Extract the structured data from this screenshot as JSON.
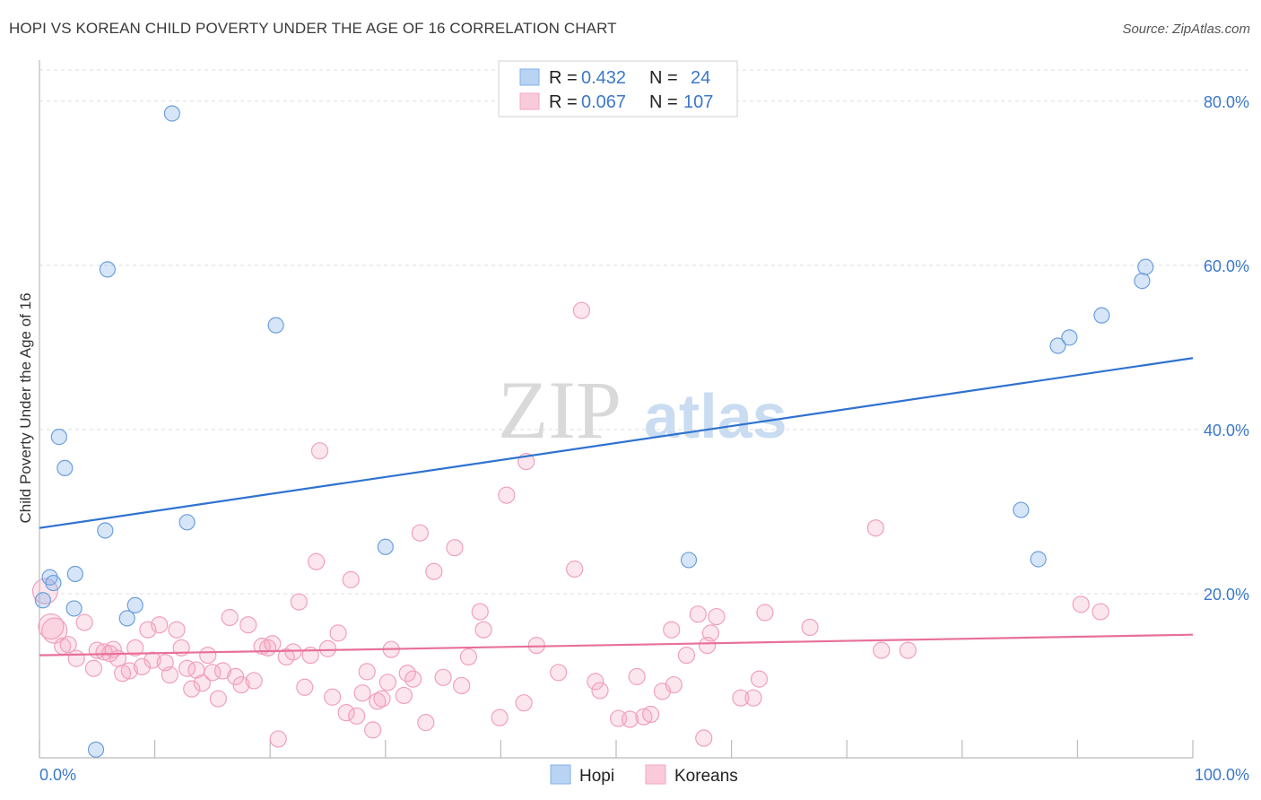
{
  "header": {
    "title": "HOPI VS KOREAN CHILD POVERTY UNDER THE AGE OF 16 CORRELATION CHART",
    "source": "Source: ZipAtlas.com"
  },
  "watermark": {
    "zip": "ZIP",
    "atlas": "atlas"
  },
  "legend": {
    "rows": [
      {
        "r_label": "R =",
        "r_value": "0.432",
        "n_label": "N =",
        "n_value": "24",
        "color": "#7fb0e8"
      },
      {
        "r_label": "R =",
        "r_value": "0.067",
        "n_label": "N =",
        "n_value": "107",
        "color": "#f4a6c0"
      }
    ]
  },
  "bottom_legend": [
    {
      "label": "Hopi",
      "color": "#7fb0e8"
    },
    {
      "label": "Koreans",
      "color": "#f4a6c0"
    }
  ],
  "chart_data": {
    "type": "scatter",
    "title": "HOPI VS KOREAN CHILD POVERTY UNDER THE AGE OF 16 CORRELATION CHART",
    "xlabel": "",
    "ylabel": "Child Poverty Under the Age of 16",
    "xlim": [
      0,
      100
    ],
    "ylim": [
      0,
      85
    ],
    "x_tick_labels": [
      "0.0%",
      "100.0%"
    ],
    "y_ticks": [
      20,
      40,
      60,
      80
    ],
    "y_tick_labels": [
      "20.0%",
      "40.0%",
      "60.0%",
      "80.0%"
    ],
    "grid": "horizontal dashed",
    "colors": {
      "hopi": "#7fb0e8",
      "hopi_line": "#2f72d0",
      "koreans": "#f4a6c0",
      "koreans_line": "#e8709a"
    },
    "series": [
      {
        "name": "Hopi",
        "trend": {
          "x": [
            0,
            100
          ],
          "y": [
            28.0,
            48.7
          ]
        },
        "points": [
          [
            11.5,
            78.5
          ],
          [
            5.9,
            59.5
          ],
          [
            20.5,
            52.7
          ],
          [
            1.7,
            39.1
          ],
          [
            2.2,
            35.3
          ],
          [
            12.8,
            28.7
          ],
          [
            5.7,
            27.7
          ],
          [
            30.0,
            25.7
          ],
          [
            56.3,
            24.1
          ],
          [
            3.1,
            22.4
          ],
          [
            0.9,
            22.0
          ],
          [
            1.2,
            21.3
          ],
          [
            8.3,
            18.6
          ],
          [
            3.0,
            18.2
          ],
          [
            7.6,
            17.0
          ],
          [
            0.3,
            19.2
          ],
          [
            4.9,
            1.0
          ],
          [
            85.1,
            30.2
          ],
          [
            86.6,
            24.2
          ],
          [
            88.3,
            50.2
          ],
          [
            89.3,
            51.2
          ],
          [
            92.1,
            53.9
          ],
          [
            95.6,
            58.1
          ],
          [
            95.9,
            59.8
          ]
        ]
      },
      {
        "name": "Koreans",
        "trend": {
          "x": [
            0,
            100
          ],
          "y": [
            12.5,
            15.0
          ]
        },
        "points": [
          [
            0.5,
            20.3
          ],
          [
            1.0,
            16.0
          ],
          [
            1.3,
            15.5
          ],
          [
            2.0,
            13.6
          ],
          [
            2.5,
            13.8
          ],
          [
            3.2,
            12.1
          ],
          [
            3.9,
            16.5
          ],
          [
            4.7,
            10.9
          ],
          [
            5.0,
            13.1
          ],
          [
            5.6,
            12.9
          ],
          [
            6.1,
            12.7
          ],
          [
            6.4,
            13.2
          ],
          [
            6.8,
            12.1
          ],
          [
            7.2,
            10.3
          ],
          [
            7.8,
            10.6
          ],
          [
            8.3,
            13.4
          ],
          [
            8.9,
            11.1
          ],
          [
            9.4,
            15.6
          ],
          [
            9.8,
            11.9
          ],
          [
            10.4,
            16.2
          ],
          [
            10.9,
            11.6
          ],
          [
            11.3,
            10.1
          ],
          [
            11.9,
            15.6
          ],
          [
            12.3,
            13.4
          ],
          [
            12.8,
            10.9
          ],
          [
            13.2,
            8.4
          ],
          [
            13.6,
            10.7
          ],
          [
            14.1,
            9.1
          ],
          [
            14.6,
            12.5
          ],
          [
            15.0,
            10.4
          ],
          [
            15.5,
            7.2
          ],
          [
            15.9,
            10.6
          ],
          [
            16.5,
            17.1
          ],
          [
            17.0,
            9.9
          ],
          [
            17.5,
            8.9
          ],
          [
            18.1,
            16.2
          ],
          [
            18.6,
            9.4
          ],
          [
            19.3,
            13.6
          ],
          [
            19.8,
            13.4
          ],
          [
            20.2,
            13.9
          ],
          [
            20.7,
            2.3
          ],
          [
            21.4,
            12.3
          ],
          [
            22.0,
            12.9
          ],
          [
            22.5,
            19.0
          ],
          [
            23.0,
            8.6
          ],
          [
            23.5,
            12.5
          ],
          [
            24.0,
            23.9
          ],
          [
            24.3,
            37.4
          ],
          [
            25.0,
            13.3
          ],
          [
            25.4,
            7.4
          ],
          [
            25.9,
            15.2
          ],
          [
            26.6,
            5.5
          ],
          [
            27.0,
            21.7
          ],
          [
            27.5,
            5.1
          ],
          [
            28.0,
            7.9
          ],
          [
            28.4,
            10.5
          ],
          [
            28.9,
            3.4
          ],
          [
            29.3,
            6.9
          ],
          [
            29.7,
            7.2
          ],
          [
            30.2,
            9.2
          ],
          [
            30.5,
            13.2
          ],
          [
            31.6,
            7.6
          ],
          [
            31.9,
            10.3
          ],
          [
            32.4,
            9.6
          ],
          [
            33.0,
            27.4
          ],
          [
            33.5,
            4.3
          ],
          [
            34.2,
            22.7
          ],
          [
            35.0,
            9.8
          ],
          [
            36.0,
            25.6
          ],
          [
            36.6,
            8.8
          ],
          [
            37.2,
            12.3
          ],
          [
            38.2,
            17.8
          ],
          [
            38.5,
            15.6
          ],
          [
            39.9,
            4.9
          ],
          [
            40.5,
            32.0
          ],
          [
            42.0,
            6.7
          ],
          [
            42.2,
            36.1
          ],
          [
            43.1,
            13.7
          ],
          [
            45.0,
            10.4
          ],
          [
            46.4,
            23.0
          ],
          [
            47.0,
            54.5
          ],
          [
            48.2,
            9.3
          ],
          [
            48.6,
            8.2
          ],
          [
            50.2,
            4.8
          ],
          [
            51.2,
            4.7
          ],
          [
            51.8,
            9.9
          ],
          [
            52.4,
            5.0
          ],
          [
            53.0,
            5.3
          ],
          [
            54.0,
            8.1
          ],
          [
            54.8,
            15.6
          ],
          [
            55.0,
            8.9
          ],
          [
            56.1,
            12.5
          ],
          [
            57.1,
            17.5
          ],
          [
            57.6,
            2.4
          ],
          [
            57.9,
            13.7
          ],
          [
            58.2,
            15.2
          ],
          [
            58.7,
            17.2
          ],
          [
            60.8,
            7.3
          ],
          [
            61.9,
            7.3
          ],
          [
            62.4,
            9.6
          ],
          [
            62.9,
            17.7
          ],
          [
            66.8,
            15.9
          ],
          [
            72.5,
            28.0
          ],
          [
            73.0,
            13.1
          ],
          [
            75.3,
            13.1
          ],
          [
            90.3,
            18.7
          ],
          [
            92.0,
            17.8
          ]
        ]
      }
    ]
  }
}
